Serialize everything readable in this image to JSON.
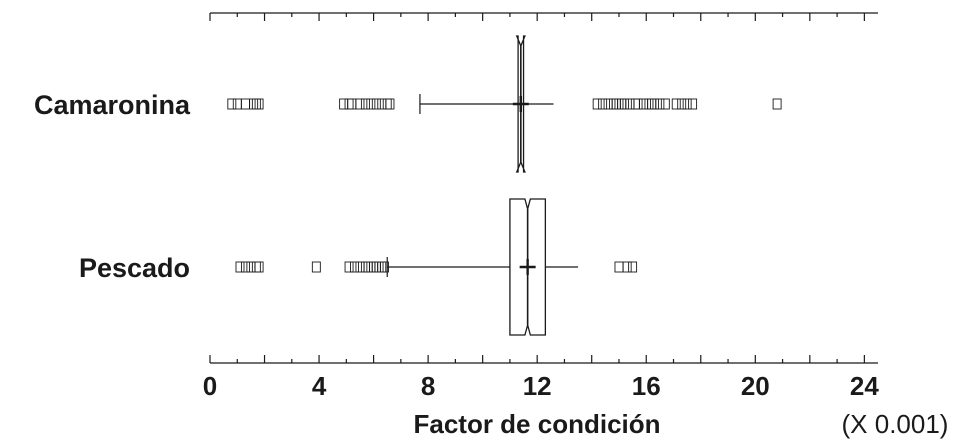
{
  "chart_data": {
    "type": "box",
    "title": "",
    "xlabel": "Factor de condición",
    "x_scale_note": "(X 0.001)",
    "xlim": [
      0,
      24.5
    ],
    "x_ticks": [
      0,
      4,
      8,
      12,
      16,
      20,
      24
    ],
    "x_tick_labels": [
      "0",
      "4",
      "8",
      "12",
      "16",
      "20",
      "24"
    ],
    "orientation": "horizontal",
    "notched": true,
    "series": [
      {
        "name": "Camaronina",
        "q1": 11.3,
        "median": 11.4,
        "q3": 11.5,
        "notch_low": 11.25,
        "notch_high": 11.55,
        "mean": 11.4,
        "whisker_low": 7.7,
        "whisker_high": 12.6,
        "outliers": [
          0.8,
          1.0,
          1.3,
          1.6,
          1.7,
          1.8,
          4.9,
          5.1,
          5.2,
          5.5,
          5.7,
          5.9,
          6.1,
          6.3,
          6.5,
          6.6,
          14.2,
          14.4,
          14.6,
          14.8,
          14.9,
          15.0,
          15.1,
          15.2,
          15.4,
          15.6,
          15.7,
          15.9,
          16.1,
          16.2,
          16.3,
          16.5,
          16.7,
          17.1,
          17.3,
          17.5,
          17.7,
          20.8
        ]
      },
      {
        "name": "Pescado",
        "q1": 11.0,
        "median": 11.65,
        "q3": 12.3,
        "notch_low": 11.55,
        "notch_high": 11.75,
        "mean": 11.65,
        "whisker_low": 6.5,
        "whisker_high": 13.5,
        "outliers": [
          1.1,
          1.3,
          1.5,
          1.7,
          1.8,
          3.9,
          5.1,
          5.3,
          5.5,
          5.7,
          5.8,
          5.9,
          6.0,
          6.1,
          6.2,
          6.3,
          6.4,
          15.0,
          15.3,
          15.5
        ]
      }
    ]
  }
}
